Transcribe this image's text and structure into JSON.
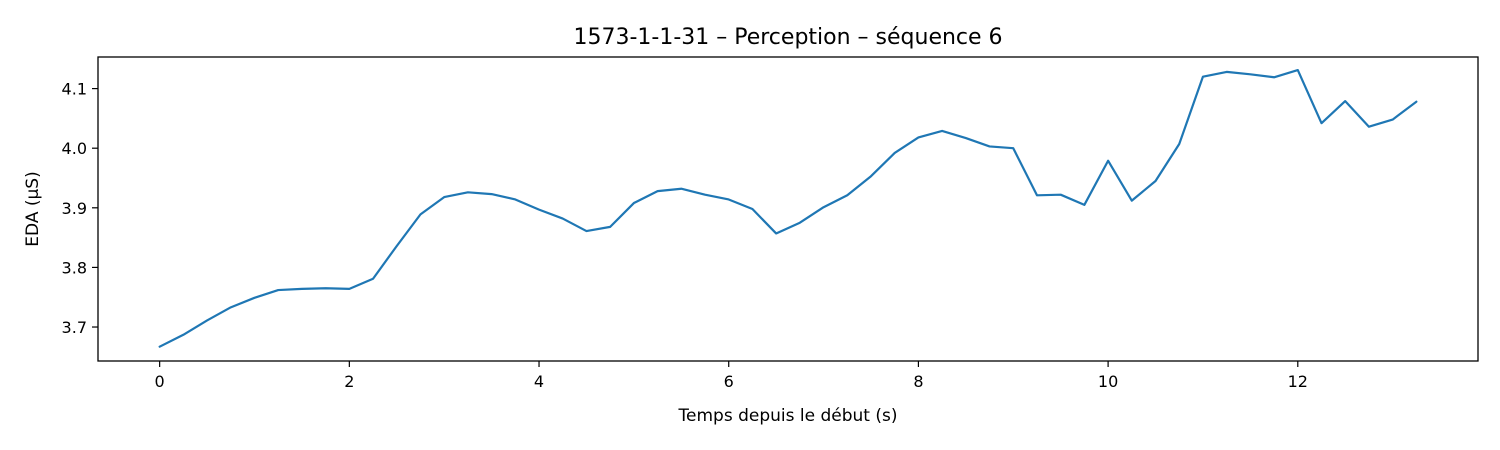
{
  "chart_data": {
    "type": "line",
    "title": "1573-1-1-31 – Perception – séquence 6",
    "xlabel": "Temps depuis le début (s)",
    "ylabel": "EDA (µS)",
    "xlim": [
      -0.65,
      13.9
    ],
    "ylim": [
      3.643,
      4.153
    ],
    "xticks": [
      0,
      2,
      4,
      6,
      8,
      10,
      12
    ],
    "xtick_labels": [
      "0",
      "2",
      "4",
      "6",
      "8",
      "10",
      "12"
    ],
    "yticks": [
      3.7,
      3.8,
      3.9,
      4.0,
      4.1
    ],
    "ytick_labels": [
      "3.7",
      "3.8",
      "3.9",
      "4.0",
      "4.1"
    ],
    "grid": false,
    "legend": "none",
    "series": [
      {
        "color": "#1f77b4",
        "x": [
          0,
          0.25,
          0.5,
          0.75,
          1,
          1.25,
          1.5,
          1.75,
          2,
          2.25,
          2.5,
          2.75,
          3,
          3.25,
          3.5,
          3.75,
          4,
          4.25,
          4.5,
          4.75,
          5,
          5.25,
          5.5,
          5.75,
          6,
          6.25,
          6.5,
          6.75,
          7,
          7.25,
          7.5,
          7.75,
          8,
          8.25,
          8.5,
          8.75,
          9,
          9.25,
          9.5,
          9.75,
          10,
          10.25,
          10.5,
          10.75,
          11,
          11.25,
          11.5,
          11.75,
          12,
          12.25,
          12.5,
          12.75,
          13,
          13.25
        ],
        "y": [
          3.667,
          3.687,
          3.711,
          3.733,
          3.749,
          3.762,
          3.764,
          3.765,
          3.764,
          3.781,
          3.836,
          3.889,
          3.918,
          3.926,
          3.923,
          3.914,
          3.897,
          3.882,
          3.861,
          3.868,
          3.908,
          3.928,
          3.932,
          3.922,
          3.914,
          3.898,
          3.857,
          3.875,
          3.901,
          3.921,
          3.953,
          3.992,
          4.018,
          4.029,
          4.017,
          4.003,
          4.0,
          3.921,
          3.922,
          3.905,
          3.979,
          3.912,
          3.945,
          4.007,
          4.12,
          4.128,
          4.124,
          4.119,
          4.131,
          4.042,
          4.079,
          4.036,
          4.048,
          4.078
        ]
      }
    ]
  }
}
